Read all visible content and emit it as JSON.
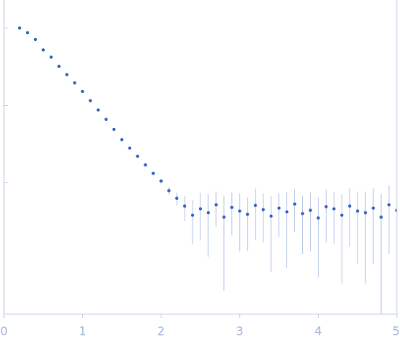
{
  "chart_data": {
    "type": "scatter",
    "log_y": true,
    "color": "#3a66c2",
    "error_color": "#b9c9e6",
    "x": [
      0.2,
      0.3,
      0.4,
      0.5,
      0.6,
      0.7,
      0.8,
      0.9,
      1.0,
      1.1,
      1.2,
      1.3,
      1.4,
      1.5,
      1.6,
      1.7,
      1.8,
      1.9,
      2.0,
      2.1,
      2.2,
      2.3,
      2.4,
      2.5,
      2.6,
      2.7,
      2.8,
      2.9,
      3.0,
      3.1,
      3.2,
      3.3,
      3.4,
      3.5,
      3.6,
      3.7,
      3.8,
      3.9,
      4.0,
      4.1,
      4.2,
      4.3,
      4.4,
      4.5,
      4.6,
      4.7,
      4.8,
      4.9,
      5.0
    ],
    "values": [
      1.0,
      0.87,
      0.71,
      0.52,
      0.42,
      0.32,
      0.25,
      0.195,
      0.151,
      0.115,
      0.087,
      0.066,
      0.049,
      0.036,
      0.028,
      0.022,
      0.017,
      0.0132,
      0.0105,
      0.0079,
      0.0063,
      0.005,
      0.0038,
      0.0046,
      0.0041,
      0.0052,
      0.0036,
      0.0048,
      0.0043,
      0.0039,
      0.0051,
      0.0045,
      0.0037,
      0.0047,
      0.0042,
      0.0053,
      0.004,
      0.0044,
      0.0035,
      0.0049,
      0.0046,
      0.0038,
      0.005,
      0.0043,
      0.0041,
      0.0047,
      0.0036,
      0.0052,
      0.0044
    ],
    "errors": [
      0.01,
      0.008,
      0.006,
      0.004,
      0.003,
      0.002,
      0.002,
      0.0015,
      0.001,
      0.001,
      0.0008,
      0.0006,
      0.0005,
      0.0004,
      0.0004,
      0.0004,
      0.0005,
      0.0006,
      0.0007,
      0.0009,
      0.0012,
      0.0018,
      0.0022,
      0.0028,
      0.003,
      0.0025,
      0.0032,
      0.0027,
      0.003,
      0.0026,
      0.0033,
      0.0028,
      0.003,
      0.0027,
      0.0034,
      0.003,
      0.0028,
      0.0031,
      0.0029,
      0.0032,
      0.003,
      0.0033,
      0.0035,
      0.0034,
      0.0036,
      0.0038,
      0.0035,
      0.004,
      0.0042
    ],
    "xlim": [
      0,
      5
    ],
    "xticks": [
      0,
      1,
      2,
      3,
      4,
      5
    ],
    "ylim": [
      0.0002,
      2.3
    ],
    "yticks": [
      1,
      0.1,
      0.01
    ]
  }
}
